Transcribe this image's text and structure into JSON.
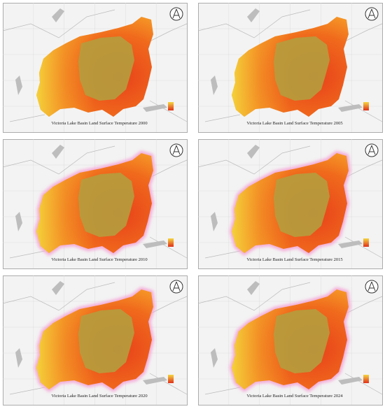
{
  "maps": [
    {
      "title": "Victoria Lake Basin Land Surface Temperature 2000"
    },
    {
      "title": "Victoria Lake Basin Land Surface Temperature 2005"
    },
    {
      "title": "Victoria Lake Basin Land Surface Temperature 2010"
    },
    {
      "title": "Victoria Lake Basin Land Surface Temperature 2015"
    },
    {
      "title": "Victoria Lake Basin Land Surface Temperature 2020"
    },
    {
      "title": "Victoria Lake Basin Land Surface Temperature 2024"
    }
  ]
}
